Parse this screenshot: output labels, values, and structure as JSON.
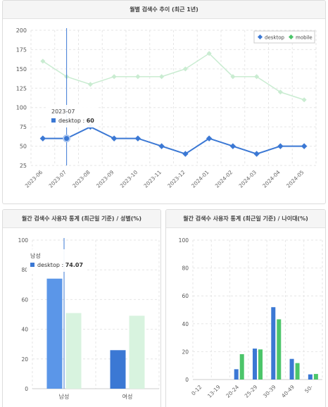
{
  "colors": {
    "desktop": "#3b78d4",
    "desktop_bar": "#5b96e8",
    "mobile": "#4cc56a",
    "mobile_line": "#c9ecd1",
    "mobile_bar": "#d8f3df",
    "grid": "#e6e6e6"
  },
  "top": {
    "title": "월별 검색수 추이 (최근 1년)",
    "tooltip": {
      "title": "2023-07",
      "series": "desktop",
      "value": "60"
    }
  },
  "gender": {
    "title": "월간 검색수 사용자 통계 (최근일 기준) / 성별(%)",
    "tooltip": {
      "title": "남성",
      "series": "desktop",
      "value": "74.07"
    }
  },
  "age": {
    "title": "월간 검색수 사용자 통계 (최근일 기준) / 나이대(%)"
  },
  "chart_data": [
    {
      "type": "line",
      "x": [
        "2023-06",
        "2023-07",
        "2023-08",
        "2023-09",
        "2023-10",
        "2023-11",
        "2023-12",
        "2024-01",
        "2024-02",
        "2024-03",
        "2024-04",
        "2024-05"
      ],
      "series": [
        {
          "name": "desktop",
          "values": [
            60,
            60,
            75,
            60,
            60,
            50,
            40,
            60,
            50,
            40,
            50,
            50
          ]
        },
        {
          "name": "mobile",
          "values": [
            160,
            140,
            130,
            140,
            140,
            140,
            150,
            170,
            140,
            140,
            120,
            110
          ]
        }
      ],
      "ylim": [
        25,
        200
      ],
      "yticks": [
        25,
        50,
        75,
        100,
        125,
        150,
        175,
        200
      ],
      "legend": "top-right",
      "grid": true
    },
    {
      "type": "bar",
      "categories": [
        "남성",
        "여성"
      ],
      "series": [
        {
          "name": "desktop",
          "values": [
            74.07,
            25.93
          ]
        },
        {
          "name": "mobile",
          "values": [
            50.91,
            49.09
          ]
        }
      ],
      "ylim": [
        0,
        100
      ],
      "yticks": [
        0,
        20,
        40,
        60,
        80,
        100
      ],
      "grid": true
    },
    {
      "type": "bar",
      "categories": [
        "0-12",
        "13-19",
        "20-24",
        "25-29",
        "30-39",
        "40-49",
        "50-"
      ],
      "series": [
        {
          "name": "desktop",
          "values": [
            0,
            0,
            7.4,
            22.2,
            51.9,
            14.8,
            3.7
          ]
        },
        {
          "name": "mobile",
          "values": [
            0,
            0,
            18.2,
            21.6,
            43.2,
            11.8,
            4.0
          ]
        }
      ],
      "ylim": [
        0,
        100
      ],
      "yticks": [
        0,
        20,
        40,
        60,
        80,
        100
      ],
      "grid": true
    }
  ]
}
